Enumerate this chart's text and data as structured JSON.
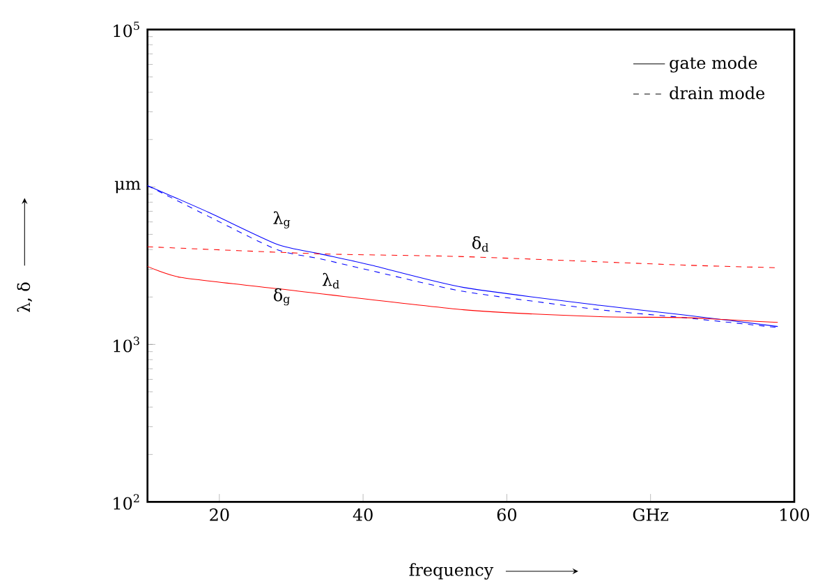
{
  "chart_data": {
    "type": "line",
    "xlabel": "frequency",
    "ylabel": "λ, δ",
    "log": "y",
    "xlim": [
      10,
      100
    ],
    "xticks": [
      20,
      40,
      60,
      {
        "value": 80,
        "label": "GHz"
      },
      100
    ],
    "ylim": [
      100,
      100000
    ],
    "yticks": [
      {
        "value": 100,
        "label": "10$^{2}$"
      },
      {
        "value": 1000,
        "label": "10$^{3}$"
      },
      {
        "value": 10000,
        "label": "μm"
      },
      {
        "value": 100000,
        "label": "10$^{5}$"
      }
    ],
    "grid": false,
    "series": [
      {
        "color": "#0000ff",
        "line_style": "solid",
        "x": [
          10,
          18.5,
          28,
          34,
          41,
          54,
          73,
          84.6,
          97.7
        ],
        "values": [
          10200,
          6900,
          4330,
          3760,
          3200,
          2300,
          1770,
          1540,
          1300
        ]
      },
      {
        "color": "#0000ff",
        "line_style": "dashed",
        "x": [
          10,
          18.5,
          28,
          34,
          41,
          54,
          73,
          84.6,
          97.7
        ],
        "values": [
          10200,
          6500,
          4000,
          3500,
          2950,
          2170,
          1660,
          1480,
          1280
        ]
      },
      {
        "color": "#ff0000",
        "line_style": "solid",
        "x": [
          10,
          14.7,
          28,
          54,
          73,
          84.6,
          97.7
        ],
        "values": [
          3130,
          2660,
          2260,
          1660,
          1500,
          1480,
          1380
        ]
      },
      {
        "color": "#ff0000",
        "line_style": "dashed",
        "x": [
          10,
          34,
          54,
          84.6,
          97.7
        ],
        "values": [
          4170,
          3760,
          3610,
          3190,
          3070
        ]
      }
    ],
    "annotations": [
      "gate mode",
      "drain mode",
      "λ$_{g}$",
      "λ$_{d}$",
      "δ$_{d}$",
      "δ$_{g}$"
    ]
  }
}
